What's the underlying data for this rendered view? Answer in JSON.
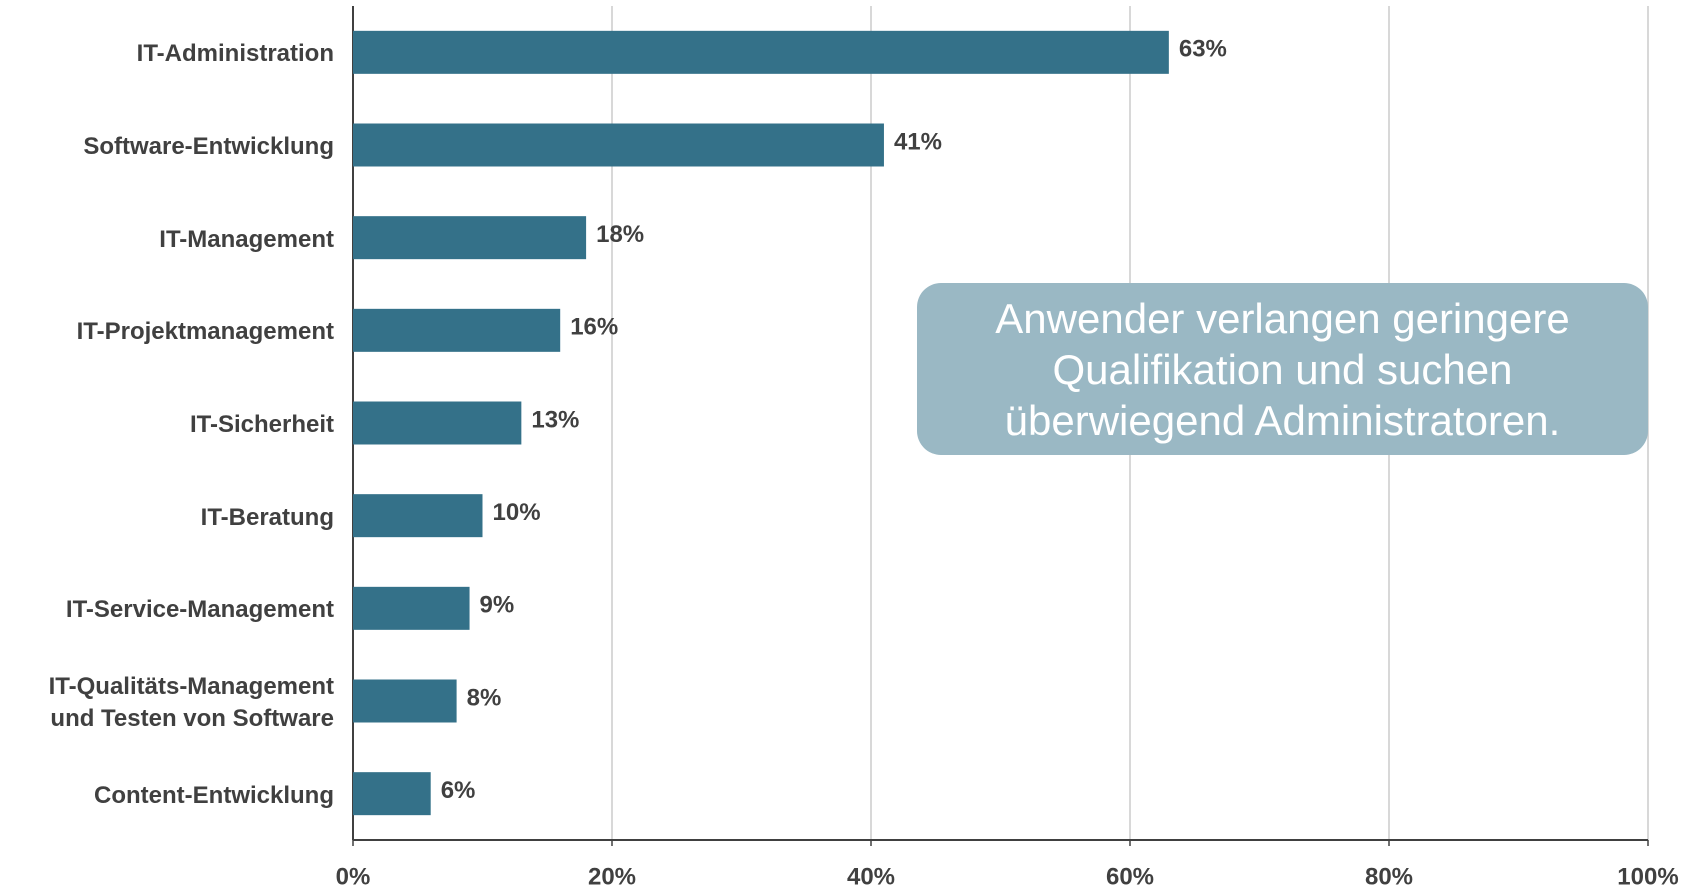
{
  "chart_data": {
    "type": "bar",
    "orientation": "horizontal",
    "categories": [
      "IT-Administration",
      "Software-Entwicklung",
      "IT-Management",
      "IT-Projektmanagement",
      "IT-Sicherheit",
      "IT-Beratung",
      "IT-Service-Management",
      "IT-Qualitäts-Management\nund Testen von Software",
      "Content-Entwicklung"
    ],
    "values": [
      63,
      41,
      18,
      16,
      13,
      10,
      9,
      8,
      6
    ],
    "value_labels": [
      "63%",
      "41%",
      "18%",
      "16%",
      "13%",
      "10%",
      "9%",
      "8%",
      "6%"
    ],
    "color": "#347189",
    "xlim": [
      0,
      100
    ],
    "xticks": [
      {
        "value": 0,
        "label": "0%"
      },
      {
        "value": 20,
        "label": "20%"
      },
      {
        "value": 40,
        "label": "40%"
      },
      {
        "value": 60,
        "label": "60%"
      },
      {
        "value": 80,
        "label": "80%"
      },
      {
        "value": 100,
        "label": "100%"
      }
    ],
    "grid": true,
    "annotation": "Anwender verlangen geringere Qualifikation und suchen überwiegend Administratoren."
  }
}
